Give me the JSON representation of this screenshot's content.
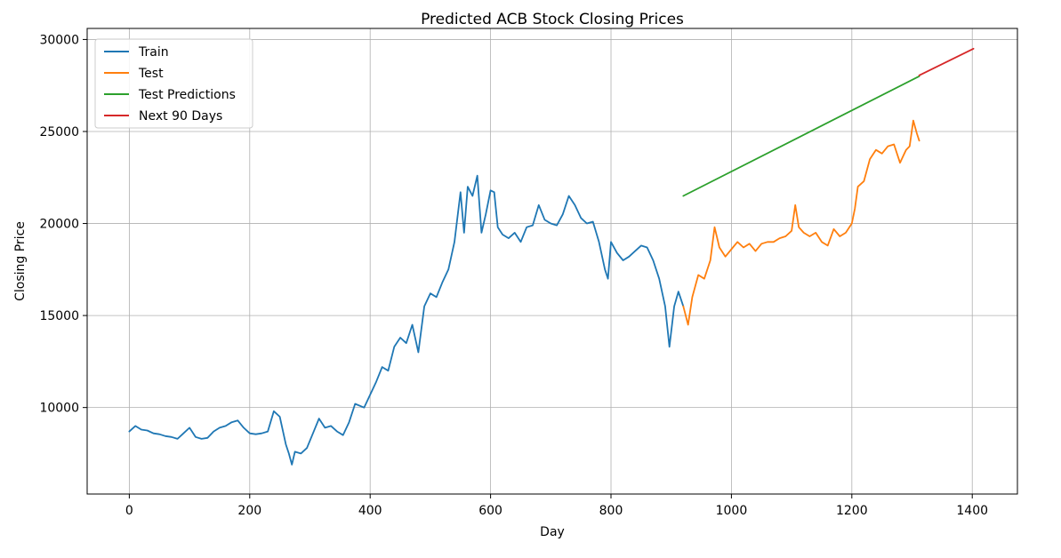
{
  "chart_data": {
    "type": "line",
    "title": "Predicted ACB Stock Closing Prices",
    "xlabel": "Day",
    "ylabel": "Closing Price",
    "xlim": [
      -70,
      1475
    ],
    "ylim": [
      5300,
      30600
    ],
    "xticks": [
      0,
      200,
      400,
      600,
      800,
      1000,
      1200,
      1400
    ],
    "yticks": [
      10000,
      15000,
      20000,
      25000,
      30000
    ],
    "grid": true,
    "legend_position": "top-left",
    "series": [
      {
        "name": "Train",
        "color": "#1f77b4",
        "points": [
          [
            0,
            8700
          ],
          [
            10,
            9000
          ],
          [
            20,
            8800
          ],
          [
            30,
            8750
          ],
          [
            40,
            8600
          ],
          [
            50,
            8550
          ],
          [
            60,
            8450
          ],
          [
            70,
            8400
          ],
          [
            80,
            8300
          ],
          [
            90,
            8600
          ],
          [
            100,
            8900
          ],
          [
            110,
            8400
          ],
          [
            120,
            8300
          ],
          [
            130,
            8350
          ],
          [
            140,
            8700
          ],
          [
            150,
            8900
          ],
          [
            160,
            9000
          ],
          [
            170,
            9200
          ],
          [
            180,
            9300
          ],
          [
            190,
            8900
          ],
          [
            200,
            8600
          ],
          [
            210,
            8550
          ],
          [
            220,
            8600
          ],
          [
            230,
            8700
          ],
          [
            240,
            9800
          ],
          [
            250,
            9500
          ],
          [
            260,
            8000
          ],
          [
            265,
            7500
          ],
          [
            270,
            6900
          ],
          [
            275,
            7600
          ],
          [
            285,
            7500
          ],
          [
            295,
            7800
          ],
          [
            305,
            8600
          ],
          [
            315,
            9400
          ],
          [
            325,
            8900
          ],
          [
            335,
            9000
          ],
          [
            345,
            8700
          ],
          [
            355,
            8500
          ],
          [
            365,
            9200
          ],
          [
            375,
            10200
          ],
          [
            390,
            10000
          ],
          [
            400,
            10700
          ],
          [
            410,
            11400
          ],
          [
            420,
            12200
          ],
          [
            430,
            12000
          ],
          [
            440,
            13300
          ],
          [
            450,
            13800
          ],
          [
            460,
            13500
          ],
          [
            470,
            14500
          ],
          [
            480,
            13000
          ],
          [
            490,
            15500
          ],
          [
            500,
            16200
          ],
          [
            510,
            16000
          ],
          [
            520,
            16800
          ],
          [
            530,
            17500
          ],
          [
            540,
            19000
          ],
          [
            550,
            21700
          ],
          [
            556,
            19500
          ],
          [
            562,
            22000
          ],
          [
            570,
            21500
          ],
          [
            578,
            22600
          ],
          [
            585,
            19500
          ],
          [
            592,
            20500
          ],
          [
            600,
            21800
          ],
          [
            606,
            21700
          ],
          [
            612,
            19800
          ],
          [
            620,
            19400
          ],
          [
            630,
            19200
          ],
          [
            640,
            19500
          ],
          [
            650,
            19000
          ],
          [
            660,
            19800
          ],
          [
            670,
            19900
          ],
          [
            680,
            21000
          ],
          [
            690,
            20200
          ],
          [
            700,
            20000
          ],
          [
            710,
            19900
          ],
          [
            720,
            20500
          ],
          [
            730,
            21500
          ],
          [
            740,
            21000
          ],
          [
            750,
            20300
          ],
          [
            760,
            20000
          ],
          [
            770,
            20100
          ],
          [
            780,
            19000
          ],
          [
            790,
            17500
          ],
          [
            795,
            17000
          ],
          [
            800,
            19000
          ],
          [
            810,
            18400
          ],
          [
            820,
            18000
          ],
          [
            830,
            18200
          ],
          [
            840,
            18500
          ],
          [
            850,
            18800
          ],
          [
            860,
            18700
          ],
          [
            870,
            18000
          ],
          [
            880,
            17000
          ],
          [
            890,
            15500
          ],
          [
            897,
            13300
          ],
          [
            905,
            15500
          ],
          [
            912,
            16300
          ],
          [
            920,
            15500
          ]
        ]
      },
      {
        "name": "Test",
        "color": "#ff7f0e",
        "points": [
          [
            920,
            15500
          ],
          [
            928,
            14500
          ],
          [
            935,
            16000
          ],
          [
            945,
            17200
          ],
          [
            955,
            17000
          ],
          [
            965,
            18000
          ],
          [
            972,
            19800
          ],
          [
            980,
            18700
          ],
          [
            990,
            18200
          ],
          [
            1000,
            18600
          ],
          [
            1010,
            19000
          ],
          [
            1020,
            18700
          ],
          [
            1030,
            18900
          ],
          [
            1040,
            18500
          ],
          [
            1050,
            18900
          ],
          [
            1060,
            19000
          ],
          [
            1070,
            19000
          ],
          [
            1080,
            19200
          ],
          [
            1090,
            19300
          ],
          [
            1100,
            19600
          ],
          [
            1106,
            21000
          ],
          [
            1112,
            19800
          ],
          [
            1120,
            19500
          ],
          [
            1130,
            19300
          ],
          [
            1140,
            19500
          ],
          [
            1150,
            19000
          ],
          [
            1160,
            18800
          ],
          [
            1170,
            19700
          ],
          [
            1180,
            19300
          ],
          [
            1190,
            19500
          ],
          [
            1200,
            20000
          ],
          [
            1205,
            20800
          ],
          [
            1210,
            22000
          ],
          [
            1220,
            22300
          ],
          [
            1230,
            23500
          ],
          [
            1240,
            24000
          ],
          [
            1250,
            23800
          ],
          [
            1260,
            24200
          ],
          [
            1270,
            24300
          ],
          [
            1280,
            23300
          ],
          [
            1290,
            24000
          ],
          [
            1296,
            24200
          ],
          [
            1302,
            25600
          ],
          [
            1308,
            24900
          ],
          [
            1312,
            24500
          ]
        ]
      },
      {
        "name": "Test Predictions",
        "color": "#2ca02c",
        "points": [
          [
            920,
            21500
          ],
          [
            1312,
            28000
          ]
        ]
      },
      {
        "name": "Next 90 Days",
        "color": "#d62728",
        "points": [
          [
            1312,
            28050
          ],
          [
            1402,
            29500
          ]
        ]
      }
    ]
  }
}
